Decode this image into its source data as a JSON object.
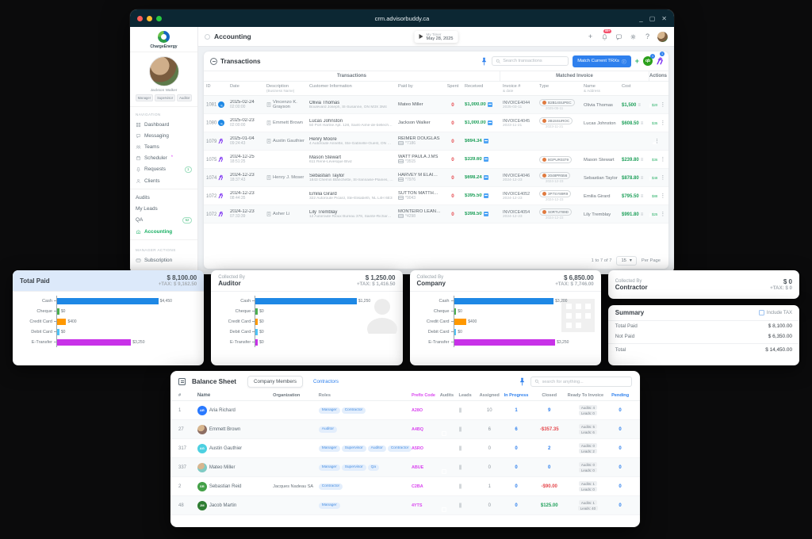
{
  "window": {
    "title": "crm.advisorbuddy.ca"
  },
  "app_header": {
    "page_title": "Accounting",
    "timer_label": "My Timer",
    "timer_date": "May 28, 2025",
    "notification_badge": "99+"
  },
  "sidebar": {
    "logo_text": "ChargeEnergy",
    "user_name": "Jackson Walker",
    "user_badges": [
      "Manager",
      "Supervisor",
      "Auditor"
    ],
    "nav_label": "NAVIGATION",
    "nav_items": [
      {
        "label": "Dashboard",
        "icon": "grid-icon"
      },
      {
        "label": "Messaging",
        "icon": "chat-icon"
      },
      {
        "label": "Teams",
        "icon": "people-icon"
      },
      {
        "label": "Scheduler",
        "icon": "calendar-icon",
        "asterisk": "*"
      },
      {
        "label": "Requests",
        "icon": "bell-icon",
        "badge": "1"
      },
      {
        "label": "Clients",
        "icon": "person-icon"
      }
    ],
    "plain_items": [
      {
        "label": "Audits"
      },
      {
        "label": "My Leads"
      },
      {
        "label": "QA",
        "badge": "52"
      }
    ],
    "accounting_item": {
      "label": "Accounting",
      "icon": "bank-icon"
    },
    "manager_label": "MANAGER ACTIONS",
    "manager_items": [
      {
        "label": "Subscription",
        "icon": "card-icon"
      }
    ]
  },
  "transactions": {
    "title": "Transactions",
    "search_placeholder": "Search transactions",
    "match_button": "Match Current TRXs",
    "qb_badge": "1",
    "hb_badge": "1",
    "group_headers": {
      "left": "Transactions",
      "right": "Matched Invoice",
      "actions": "Actions"
    },
    "columns": [
      {
        "label": "ID"
      },
      {
        "label": "Date"
      },
      {
        "label": "Description",
        "sub": "(Business Name)"
      },
      {
        "label": "Customer Information"
      },
      {
        "label": "Paid by"
      },
      {
        "label": "Spent"
      },
      {
        "label": "Received"
      },
      {
        "label": "Invoice #",
        "sub": "& date"
      },
      {
        "label": "Type"
      },
      {
        "label": "Name",
        "sub": "& Address"
      },
      {
        "label": "Cost"
      }
    ],
    "rows": [
      {
        "id": "1081",
        "source": "qb",
        "date": "2025-02-24",
        "time": "02:00:00",
        "description": "Vincenzo K. Grayson",
        "customer": "Olivia Thomas",
        "address": "Boulevard Joseph, St-Susanne, ON M3X 3M4",
        "paid_by": "Mateo Miller",
        "card": "",
        "spent": "0",
        "received": "$1,000.00",
        "invoice": "INVOICE4044",
        "invoice_date": "2025-03-11",
        "type_code": "B2B14SUPEC",
        "type_date": "2025-05-11",
        "matched_name": "Olivia Thomas",
        "cost": "$1,500",
        "toggle": true,
        "toggle_label": "$20"
      },
      {
        "id": "1080",
        "source": "qb",
        "date": "2025-02-23",
        "time": "02:00:00",
        "description": "Emmett Brown",
        "customer": "Lucas Johnston",
        "address": "50 Port Hartne Apt. 128, Saint-Aime-de-bellechasse, NL",
        "paid_by": "Jackson Walker",
        "card": "",
        "spent": "0",
        "received": "$1,000.00",
        "invoice": "INVOICE4045",
        "invoice_date": "2023-11-21",
        "type_code": "2B15SUROC",
        "type_date": "2023-11-21",
        "matched_name": "Lucas Johnston",
        "cost": "$608.50",
        "toggle": true,
        "toggle_label": "$35"
      },
      {
        "id": "1079",
        "source": "hb",
        "date": "2025-01-04",
        "time": "09:24:43",
        "description": "Austin Gauthier",
        "customer": "Henry Moore",
        "address": "4 Autoroute Annette, Ste-Gabrielle-Ouest, ON W0J 0V6",
        "paid_by": "REIMER DOUGLAS",
        "card": "*7186",
        "spent": "0",
        "received": "$694.34",
        "invoice": "",
        "invoice_date": "",
        "type_code": "",
        "type_date": "",
        "matched_name": "",
        "cost": "",
        "toggle": false,
        "toggle_label": ""
      },
      {
        "id": "1075",
        "source": "hb",
        "date": "2024-12-25",
        "time": "18:51:25",
        "description": "",
        "customer": "Mason Stewart",
        "address": "611 René-Lévesque Blvd",
        "paid_by": "WATT PAULA J.MS",
        "card": "*3515",
        "spent": "0",
        "received": "$339.60",
        "invoice": "",
        "invoice_date": "",
        "type_code": "8GPUR0379",
        "type_date": "",
        "matched_name": "Mason Stewart",
        "cost": "$239.80",
        "toggle": true,
        "toggle_label": "$36"
      },
      {
        "id": "1074",
        "source": "hb",
        "date": "2024-12-23",
        "time": "18:37:43",
        "description": "Henry J. Moser",
        "customer": "Sebastian Taylor",
        "address": "1843 Chemin Blanchette, St-Irannaise-Plaines, QC L8P 7V3",
        "paid_by": "HARVEY M ELAINE.MS",
        "card": "*7976",
        "spent": "0",
        "received": "$698.24",
        "invoice": "INVOICE4046",
        "invoice_date": "2024-12-23",
        "type_code": "2048PR556",
        "type_date": "2024-12-23",
        "matched_name": "Sebastian Taylor",
        "cost": "$878.80",
        "toggle": true,
        "toggle_label": "$48"
      },
      {
        "id": "1072",
        "source": "hb",
        "date": "2024-12-23",
        "time": "08:44:35",
        "description": "",
        "customer": "Emilia Girard",
        "address": "322 Autoroute Picard, Ste-Élisabeth, NL L4H 6E3",
        "paid_by": "SUTTON MATTHEW",
        "card": "*9043",
        "spent": "0",
        "received": "$395.50",
        "invoice": "INVOICE4052",
        "invoice_date": "2024-12-23",
        "type_code": "3P7SY89R9",
        "type_date": "2024-12-23",
        "matched_name": "Emilia Girard",
        "cost": "$795.50",
        "toggle": true,
        "toggle_label": "$88"
      },
      {
        "id": "1072",
        "source": "hb",
        "date": "2024-12-23",
        "time": "07:33:39",
        "description": "Asher Li",
        "customer": "Lily Tremblay",
        "address": "12 Autoroute Rioux Bureau 378, Sainte-Richard-de-Dorset, SK C0P 0T1",
        "paid_by": "MONTEIRO LEANDRO",
        "card": "*4298",
        "spent": "0",
        "received": "$398.50",
        "invoice": "INVOICE4054",
        "invoice_date": "2024-12-23",
        "type_code": "S0RTU789D",
        "type_date": "2024-12-23",
        "matched_name": "Lily Tremblay",
        "cost": "$991.80",
        "toggle": true,
        "toggle_label": "$25"
      }
    ],
    "pagination": {
      "range": "1 to 7 of 7",
      "per_page_value": "15",
      "per_page_label": "Per Page"
    }
  },
  "chart_data": [
    {
      "type": "bar",
      "title": "Total Paid",
      "amount": "$ 8,100.00",
      "tax": "+TAX: $ 9,162.50",
      "categories": [
        "Cash",
        "Cheque",
        "Credit Card",
        "Debit Card",
        "E-Transfer"
      ],
      "values": [
        4450,
        0,
        400,
        0,
        3250
      ],
      "value_labels": [
        "$4,450",
        "$0",
        "$400",
        "$0",
        "$3,250"
      ],
      "colors": [
        "#1e88e5",
        "#4caf50",
        "#ff9800",
        "#4fc3f7",
        "#c832e8"
      ],
      "max": 4450,
      "highlight": true,
      "watermark": ""
    },
    {
      "type": "bar",
      "subtitle": "Collected By",
      "title": "Auditor",
      "amount": "$ 1,250.00",
      "tax": "+TAX: $ 1,416.50",
      "categories": [
        "Cash",
        "Cheque",
        "Credit Card",
        "Debit Card",
        "E-Transfer"
      ],
      "values": [
        1250,
        0,
        0,
        0,
        0
      ],
      "value_labels": [
        "$1,250",
        "$0",
        "$0",
        "$0",
        "$0"
      ],
      "colors": [
        "#1e88e5",
        "#4caf50",
        "#ff9800",
        "#4fc3f7",
        "#c832e8"
      ],
      "max": 1250,
      "highlight": false,
      "watermark": "person"
    },
    {
      "type": "bar",
      "subtitle": "Collected By",
      "title": "Company",
      "amount": "$ 6,850.00",
      "tax": "+TAX: $ 7,746.00",
      "categories": [
        "Cash",
        "Cheque",
        "Credit Card",
        "Debit Card",
        "E-Transfer"
      ],
      "values": [
        3200,
        0,
        400,
        0,
        3250
      ],
      "value_labels": [
        "$3,200",
        "$0",
        "$400",
        "$0",
        "$3,250"
      ],
      "colors": [
        "#1e88e5",
        "#4caf50",
        "#ff9800",
        "#4fc3f7",
        "#c832e8"
      ],
      "max": 3250,
      "highlight": false,
      "watermark": "building"
    }
  ],
  "contractor_card": {
    "subtitle": "Collected By",
    "title": "Contractor",
    "amount": "$ 0",
    "tax": "+TAX: $ 0"
  },
  "summary": {
    "title": "Summary",
    "include_tax_label": "Include TAX",
    "rows": [
      {
        "label": "Total Paid",
        "value": "$ 8,100.00"
      },
      {
        "label": "Not Paid",
        "value": "$ 6,350.00"
      }
    ],
    "total": {
      "label": "Total",
      "value": "$ 14,450.00"
    }
  },
  "balance_sheet": {
    "title": "Balance Sheet",
    "tabs": [
      {
        "label": "Company Members",
        "active": true
      },
      {
        "label": "Contractors",
        "active": false
      }
    ],
    "search_placeholder": "search for anything...",
    "columns": [
      "#",
      "Name",
      "Organization",
      "Roles",
      "Prefix Code",
      "Audits",
      "Leads",
      "Assigned",
      "In Progress",
      "Closed",
      "Ready To Invoice",
      "Pending"
    ],
    "rows": [
      {
        "num": "1",
        "initials": "AR",
        "color": "#2979ff",
        "photo": false,
        "name": "Aria Richard",
        "org": "",
        "roles": [
          "Manager",
          "Contractor"
        ],
        "prefix": "A28O",
        "assigned": "10",
        "in_progress": "1",
        "closed": "9",
        "closed_kind": "blue",
        "rti_audits": "Audits: 4",
        "rti_leads": "Leads: 0",
        "pending": "0"
      },
      {
        "num": "27",
        "initials": "EB",
        "color": "#8d6e63",
        "photo": true,
        "name": "Emmett Brown",
        "org": "",
        "roles": [
          "Auditor"
        ],
        "prefix": "A4BQ",
        "assigned": "6",
        "in_progress": "6",
        "closed": "-$357.35",
        "closed_kind": "red",
        "rti_audits": "Audits: 5",
        "rti_leads": "Leads: 6",
        "pending": "0"
      },
      {
        "num": "317",
        "initials": "AG",
        "color": "#4dd0e1",
        "photo": false,
        "name": "Austin Gauthier",
        "org": "",
        "roles": [
          "Manager",
          "Supervisor",
          "Auditor",
          "Contractor",
          "Qa"
        ],
        "prefix": "A5RO",
        "assigned": "0",
        "in_progress": "0",
        "closed": "2",
        "closed_kind": "blue",
        "rti_audits": "Audits: 0",
        "rti_leads": "Leads: 2",
        "pending": "0"
      },
      {
        "num": "337",
        "initials": "MM",
        "color": "#80cbc4",
        "photo": true,
        "name": "Mateo Miller",
        "org": "",
        "roles": [
          "Manager",
          "Supervisor",
          "Qa"
        ],
        "prefix": "ABUE",
        "assigned": "0",
        "in_progress": "0",
        "closed": "0",
        "closed_kind": "blue",
        "rti_audits": "Audits: 0",
        "rti_leads": "Leads: 0",
        "pending": "0"
      },
      {
        "num": "2",
        "initials": "SR",
        "color": "#43a047",
        "photo": false,
        "name": "Sebastian Reid",
        "org": "Jacques Nadeau SA",
        "roles": [
          "Contractor"
        ],
        "prefix": "C2BA",
        "assigned": "1",
        "in_progress": "0",
        "closed": "-$90.00",
        "closed_kind": "red",
        "rti_audits": "Audits: 1",
        "rti_leads": "Leads: 0",
        "pending": "0"
      },
      {
        "num": "48",
        "initials": "JM",
        "color": "#2e7d32",
        "photo": false,
        "name": "Jacob Martin",
        "org": "",
        "roles": [
          "Manager"
        ],
        "prefix": "4YTS",
        "assigned": "0",
        "in_progress": "0",
        "closed": "$125.00",
        "closed_kind": "green",
        "rti_audits": "Audits: 1",
        "rti_leads": "Leads: 40",
        "pending": "0"
      }
    ]
  }
}
